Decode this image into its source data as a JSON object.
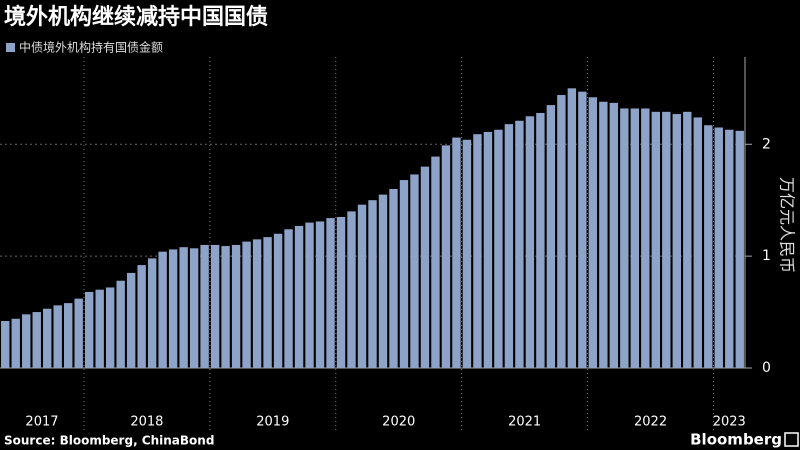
{
  "chart_data": {
    "type": "bar",
    "title": "境外机构继续减持中国国债",
    "source": "Source: Bloomberg, ChinaBond",
    "logo": "Bloomberg",
    "y_label": "万亿元人民币",
    "series": [
      {
        "name": "中债境外机构持有国债金额",
        "color": "#8ea3c8",
        "values": [
          0.42,
          0.44,
          0.48,
          0.5,
          0.53,
          0.56,
          0.58,
          0.62,
          0.68,
          0.7,
          0.72,
          0.78,
          0.85,
          0.92,
          0.98,
          1.04,
          1.06,
          1.08,
          1.07,
          1.1,
          1.1,
          1.09,
          1.1,
          1.13,
          1.15,
          1.17,
          1.2,
          1.24,
          1.27,
          1.3,
          1.31,
          1.34,
          1.35,
          1.4,
          1.46,
          1.5,
          1.55,
          1.6,
          1.68,
          1.73,
          1.8,
          1.89,
          1.99,
          2.06,
          2.04,
          2.09,
          2.11,
          2.13,
          2.18,
          2.21,
          2.25,
          2.28,
          2.35,
          2.44,
          2.5,
          2.47,
          2.42,
          2.38,
          2.37,
          2.32,
          2.32,
          2.32,
          2.29,
          2.29,
          2.27,
          2.29,
          2.24,
          2.17,
          2.15,
          2.13,
          2.12
        ]
      }
    ],
    "categories": [
      "2017",
      null,
      null,
      null,
      null,
      null,
      null,
      null,
      "2018",
      null,
      null,
      null,
      null,
      null,
      null,
      null,
      null,
      null,
      null,
      null,
      "2019",
      null,
      null,
      null,
      null,
      null,
      null,
      null,
      null,
      null,
      null,
      null,
      "2020",
      null,
      null,
      null,
      null,
      null,
      null,
      null,
      null,
      null,
      null,
      null,
      "2021",
      null,
      null,
      null,
      null,
      null,
      null,
      null,
      null,
      null,
      null,
      null,
      "2022",
      null,
      null,
      null,
      null,
      null,
      null,
      null,
      null,
      null,
      null,
      null,
      "2023",
      null,
      null
    ],
    "ylim": [
      0,
      2.78
    ],
    "yticks": [
      0,
      1,
      2
    ],
    "grid": true
  }
}
